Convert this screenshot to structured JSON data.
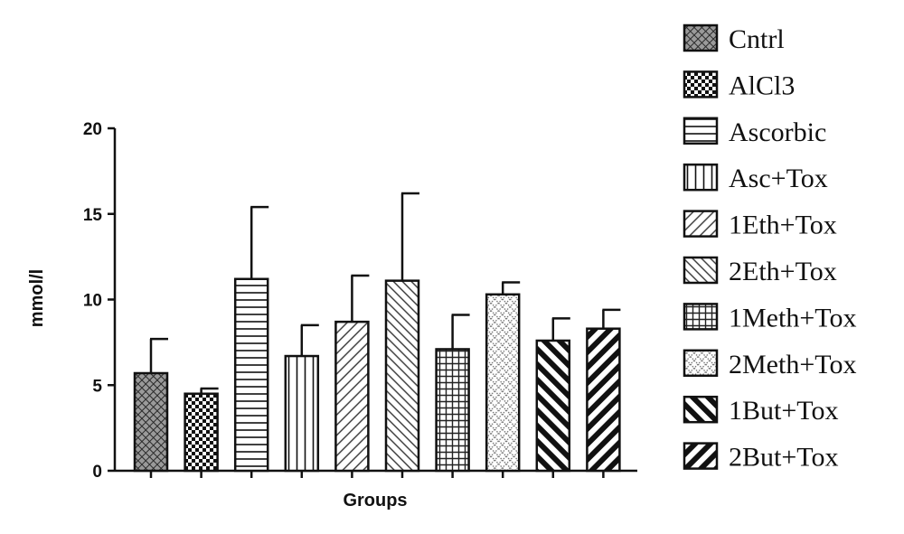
{
  "chart_data": {
    "type": "bar",
    "xlabel": "Groups",
    "ylabel": "mmol/l",
    "ylim": [
      0,
      20
    ],
    "yticks": [
      0,
      5,
      10,
      15,
      20
    ],
    "grid": false,
    "legend_position": "right",
    "categories": [
      "Cntrl",
      "AlCl3",
      "Ascorbic",
      "Asc+Tox",
      "1Eth+Tox",
      "2Eth+Tox",
      "1Meth+Tox",
      "2Meth+Tox",
      "1But+Tox",
      "2But+Tox"
    ],
    "values": [
      5.7,
      4.5,
      11.2,
      6.7,
      8.7,
      11.1,
      7.1,
      10.3,
      7.6,
      8.3
    ],
    "error_upper": [
      2.0,
      0.3,
      4.2,
      1.8,
      2.7,
      5.1,
      2.0,
      0.7,
      1.3,
      1.1
    ],
    "patterns": [
      "dense-crosshatch",
      "checkerboard",
      "horizontal",
      "vertical",
      "diagonal-up",
      "diagonal-down",
      "grid",
      "dotted-diamond",
      "thick-diagonal-down",
      "thick-diagonal-up"
    ]
  }
}
